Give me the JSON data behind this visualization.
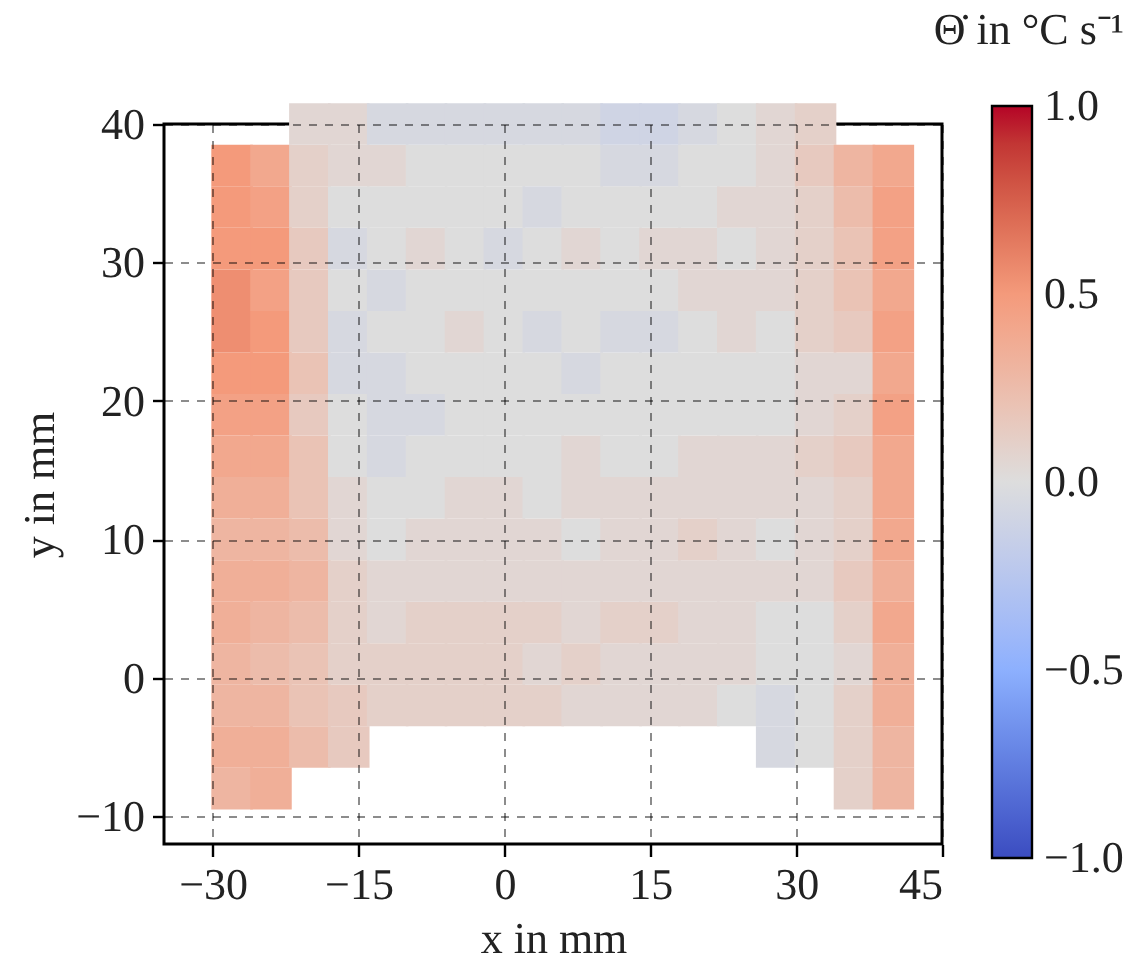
{
  "chart_data": {
    "type": "scatter",
    "marker": "square",
    "xlabel": "x in mm",
    "ylabel": "y in mm",
    "clabel": "Θ̇ in °C s⁻¹",
    "xlim": [
      -35,
      45
    ],
    "ylim": [
      -12,
      40
    ],
    "xticks": [
      {
        "value": -30,
        "label": "−30"
      },
      {
        "value": -15,
        "label": "−15"
      },
      0,
      15,
      30,
      45
    ],
    "yticks": [
      {
        "value": -10,
        "label": "−10"
      },
      0,
      10,
      20,
      30,
      40
    ],
    "clim": [
      -1,
      1
    ],
    "cticks": [
      {
        "value": 1,
        "label": "1.0"
      },
      {
        "value": 0.5,
        "label": "0.5"
      },
      {
        "value": 0,
        "label": "0.0"
      },
      {
        "value": -0.5,
        "label": "−0.5"
      },
      {
        "value": -1,
        "label": "−1.0"
      }
    ],
    "grid": true,
    "x": [
      -28,
      -28,
      -28,
      -28,
      -28,
      -28,
      -28,
      -28,
      -28,
      -28,
      -28,
      -28,
      -28,
      -28,
      -28,
      -28,
      -24,
      -24,
      -24,
      -24,
      -24,
      -24,
      -24,
      -24,
      -24,
      -24,
      -24,
      -24,
      -24,
      -24,
      -24,
      -24,
      -20,
      -20,
      -20,
      -20,
      -20,
      -20,
      -20,
      -20,
      -20,
      -20,
      -20,
      -20,
      -20,
      -20,
      -20,
      -20,
      -16,
      -16,
      -16,
      -16,
      -16,
      -16,
      -16,
      -16,
      -16,
      -16,
      -16,
      -16,
      -16,
      -16,
      -16,
      -16,
      -12,
      -12,
      -12,
      -12,
      -12,
      -12,
      -12,
      -12,
      -12,
      -12,
      -12,
      -12,
      -12,
      -12,
      -12,
      -8,
      -8,
      -8,
      -8,
      -8,
      -8,
      -8,
      -8,
      -8,
      -8,
      -8,
      -8,
      -8,
      -8,
      -8,
      -4,
      -4,
      -4,
      -4,
      -4,
      -4,
      -4,
      -4,
      -4,
      -4,
      -4,
      -4,
      -4,
      -4,
      -4,
      0,
      0,
      0,
      0,
      0,
      0,
      0,
      0,
      0,
      0,
      0,
      0,
      0,
      0,
      0,
      4,
      4,
      4,
      4,
      4,
      4,
      4,
      4,
      4,
      4,
      4,
      4,
      4,
      4,
      4,
      8,
      8,
      8,
      8,
      8,
      8,
      8,
      8,
      8,
      8,
      8,
      8,
      8,
      8,
      8,
      12,
      12,
      12,
      12,
      12,
      12,
      12,
      12,
      12,
      12,
      12,
      12,
      12,
      12,
      12,
      16,
      16,
      16,
      16,
      16,
      16,
      16,
      16,
      16,
      16,
      16,
      16,
      16,
      16,
      16,
      20,
      20,
      20,
      20,
      20,
      20,
      20,
      20,
      20,
      20,
      20,
      20,
      20,
      20,
      20,
      24,
      24,
      24,
      24,
      24,
      24,
      24,
      24,
      24,
      24,
      24,
      24,
      24,
      24,
      24,
      28,
      28,
      28,
      28,
      28,
      28,
      28,
      28,
      28,
      28,
      28,
      28,
      28,
      28,
      28,
      28,
      32,
      32,
      32,
      32,
      32,
      32,
      32,
      32,
      32,
      32,
      32,
      32,
      32,
      32,
      32,
      32,
      36,
      36,
      36,
      36,
      36,
      36,
      36,
      36,
      36,
      36,
      36,
      36,
      36,
      36,
      36,
      36,
      40,
      40,
      40,
      40,
      40,
      40,
      40,
      40,
      40,
      40,
      40,
      40,
      40,
      40,
      40,
      40
    ],
    "values": [
      -8,
      -5,
      -2,
      1,
      4,
      7,
      10,
      13,
      16,
      19,
      22,
      25,
      28,
      31,
      34,
      37,
      -8,
      -5,
      -2,
      1,
      4,
      7,
      10,
      13,
      16,
      19,
      22,
      25,
      28,
      31,
      34,
      37,
      -5,
      -2,
      1,
      4,
      7,
      10,
      13,
      16,
      19,
      22,
      25,
      28,
      31,
      34,
      37,
      40,
      -5,
      -2,
      1,
      4,
      7,
      10,
      13,
      16,
      19,
      22,
      25,
      28,
      31,
      34,
      37,
      40,
      -2,
      1,
      4,
      7,
      10,
      13,
      16,
      19,
      22,
      25,
      28,
      31,
      34,
      37,
      40,
      -2,
      1,
      4,
      7,
      10,
      13,
      16,
      19,
      22,
      25,
      28,
      31,
      34,
      37,
      40,
      -2,
      1,
      4,
      7,
      10,
      13,
      16,
      19,
      22,
      25,
      28,
      31,
      34,
      37,
      40,
      -2,
      1,
      4,
      7,
      10,
      13,
      16,
      19,
      22,
      25,
      28,
      31,
      34,
      37,
      40,
      -2,
      1,
      4,
      7,
      10,
      13,
      16,
      19,
      22,
      25,
      28,
      31,
      34,
      37,
      40,
      -2,
      1,
      4,
      7,
      10,
      13,
      16,
      19,
      22,
      25,
      28,
      31,
      34,
      37,
      40,
      -2,
      1,
      4,
      7,
      10,
      13,
      16,
      19,
      22,
      25,
      28,
      31,
      34,
      37,
      40,
      -2,
      1,
      4,
      7,
      10,
      13,
      16,
      19,
      22,
      25,
      28,
      31,
      34,
      37,
      40,
      -2,
      1,
      4,
      7,
      10,
      13,
      16,
      19,
      22,
      25,
      28,
      31,
      34,
      37,
      40,
      -2,
      1,
      4,
      7,
      10,
      13,
      16,
      19,
      22,
      25,
      28,
      31,
      34,
      37,
      40,
      -5,
      -2,
      1,
      4,
      7,
      10,
      13,
      16,
      19,
      22,
      25,
      28,
      31,
      34,
      37,
      40,
      -5,
      -2,
      1,
      4,
      7,
      10,
      13,
      16,
      19,
      22,
      25,
      28,
      31,
      34,
      37,
      40,
      -8,
      -5,
      -2,
      1,
      4,
      7,
      10,
      13,
      16,
      19,
      22,
      25,
      28,
      31,
      34,
      37,
      -8,
      -5,
      -2,
      1,
      4,
      7,
      10,
      13,
      16,
      19,
      22,
      25,
      28,
      31,
      34,
      37
    ],
    "cvalues": [
      0.3,
      0.35,
      0.3,
      0.3,
      0.35,
      0.35,
      0.3,
      0.35,
      0.4,
      0.45,
      0.5,
      0.55,
      0.55,
      0.5,
      0.5,
      0.5,
      0.35,
      0.35,
      0.3,
      0.25,
      0.3,
      0.35,
      0.3,
      0.35,
      0.4,
      0.45,
      0.5,
      0.5,
      0.45,
      0.5,
      0.45,
      0.4,
      0.25,
      0.2,
      0.2,
      0.25,
      0.3,
      0.25,
      0.2,
      0.2,
      0.15,
      0.2,
      0.15,
      0.15,
      0.15,
      0.1,
      0.1,
      0.05,
      0.15,
      0.15,
      0.1,
      0.1,
      0.1,
      0.05,
      0.05,
      0,
      0,
      -0.05,
      -0.05,
      0,
      -0.05,
      0,
      0.05,
      0.05,
      0.1,
      0.1,
      0.05,
      0.05,
      0,
      0,
      -0.05,
      -0.05,
      -0.05,
      0,
      -0.05,
      0,
      0,
      0.05,
      -0.05,
      0.1,
      0.1,
      0.1,
      0.05,
      0.05,
      0,
      0,
      -0.05,
      0,
      0,
      0,
      0.05,
      0,
      0,
      -0.05,
      0.1,
      0.1,
      0.1,
      0.05,
      0.05,
      0.05,
      0,
      0,
      0,
      0.05,
      0,
      0,
      0,
      0,
      -0.05,
      0.1,
      0.1,
      0.1,
      0.05,
      0.05,
      0.05,
      0,
      0,
      0,
      0,
      0,
      -0.05,
      0,
      0,
      -0.05,
      0.1,
      0.05,
      0.1,
      0.05,
      0.05,
      0,
      0,
      0,
      0,
      -0.05,
      0,
      0,
      -0.05,
      0,
      -0.05,
      0.05,
      0.1,
      0.05,
      0.05,
      0,
      0.05,
      0.05,
      0,
      -0.05,
      0,
      0,
      0.05,
      0,
      0,
      -0.05,
      0.05,
      0.05,
      0.1,
      0.05,
      0.05,
      0.05,
      0,
      0,
      0,
      -0.05,
      0,
      0,
      0,
      -0.05,
      -0.1,
      0.05,
      0.05,
      0.1,
      0.05,
      0.05,
      0.05,
      0,
      0,
      0,
      -0.05,
      0,
      0.05,
      0,
      -0.05,
      -0.1,
      0.05,
      0.05,
      0.05,
      0.05,
      0.1,
      0.05,
      0.05,
      0,
      0,
      0,
      0.05,
      0.05,
      0,
      0,
      -0.05,
      0,
      0.05,
      0.05,
      0.05,
      0.05,
      0.05,
      0.05,
      0,
      0,
      0.05,
      0.05,
      0,
      0.05,
      0,
      0,
      -0.05,
      -0.05,
      0,
      0,
      0.05,
      0,
      0.05,
      0.05,
      0,
      0,
      0,
      0.05,
      0.05,
      0.05,
      0.05,
      0.05,
      0,
      0,
      0,
      0,
      0.05,
      0.05,
      0.05,
      0.1,
      0.05,
      0.05,
      0.1,
      0.1,
      0.1,
      0.1,
      0.15,
      0.1,
      0.1,
      0.1,
      0.1,
      0.05,
      0.1,
      0.15,
      0.1,
      0.1,
      0.15,
      0.1,
      0.05,
      0.15,
      0.2,
      0.2,
      0.25,
      0.3,
      0.3,
      0.3,
      0.35,
      0.35,
      0.4,
      0.35,
      0.4,
      0.4,
      0.4,
      0.45,
      0.4,
      0.45,
      0.4,
      0.45,
      0.45,
      0.4
    ]
  }
}
